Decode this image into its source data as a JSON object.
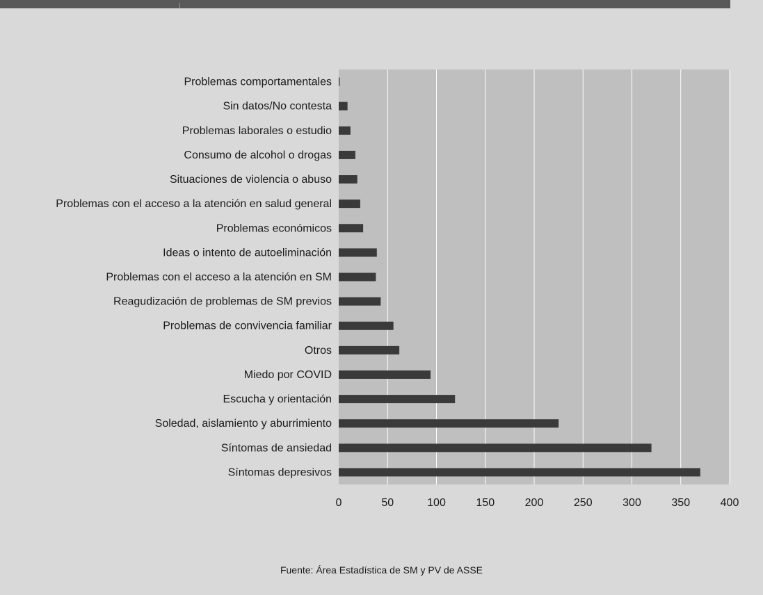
{
  "chart_data": {
    "type": "bar",
    "orientation": "horizontal",
    "categories": [
      "Problemas comportamentales",
      "Sin datos/No contesta",
      "Problemas laborales o estudio",
      "Consumo de alcohol o drogas",
      "Situaciones de violencia o abuso",
      "Problemas con el acceso a  la atención en salud general",
      "Problemas económicos",
      "Ideas o intento de autoeliminación",
      "Problemas con el acceso a  la atención en SM",
      "Reagudización de problemas de SM previos",
      "Problemas de convivencia familiar",
      "Otros",
      "Miedo por COVID",
      "Escucha y orientación",
      "Soledad, aislamiento y aburrimiento",
      "Síntomas de ansiedad",
      "Síntomas depresivos"
    ],
    "values": [
      1,
      9,
      12,
      17,
      19,
      22,
      25,
      39,
      38,
      43,
      56,
      62,
      94,
      119,
      225,
      320,
      370
    ],
    "xlim": [
      0,
      400
    ],
    "xticks": [
      "0",
      "50",
      "100",
      "150",
      "200",
      "250",
      "300",
      "350",
      "400"
    ],
    "grid": "vertical",
    "colors": {
      "background": "#d9d9d9",
      "plot_area": "#bfbfbf",
      "bar": "#3a3a3a",
      "gridline": "#ffffff",
      "top_band": "#595959"
    }
  },
  "source_note": "Fuente: Área Estadística de SM y PV de ASSE"
}
